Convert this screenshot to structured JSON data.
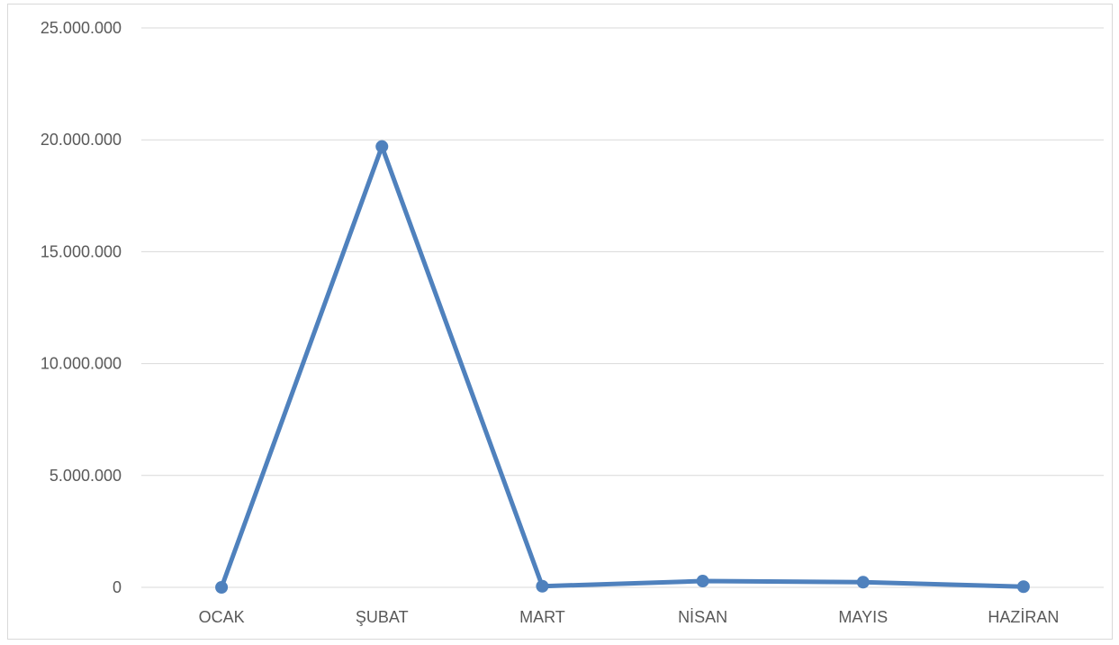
{
  "chart_data": {
    "type": "line",
    "title": "",
    "xlabel": "",
    "ylabel": "",
    "categories": [
      "OCAK",
      "ŞUBAT",
      "MART",
      "NİSAN",
      "MAYIS",
      "HAZİRAN"
    ],
    "series": [
      {
        "values": [
          0,
          19700000,
          50000,
          280000,
          230000,
          30000
        ]
      }
    ],
    "ylim": [
      0,
      25000000
    ],
    "y_ticks": [
      0,
      5000000,
      10000000,
      15000000,
      20000000,
      25000000
    ],
    "y_tick_labels": [
      "0",
      "5.000.000",
      "10.000.000",
      "15.000.000",
      "20.000.000",
      "25.000.000"
    ],
    "grid": true,
    "legend": "none",
    "colors": {
      "series": "#4f81bd",
      "grid": "#d9d9d9",
      "text": "#595959"
    }
  }
}
